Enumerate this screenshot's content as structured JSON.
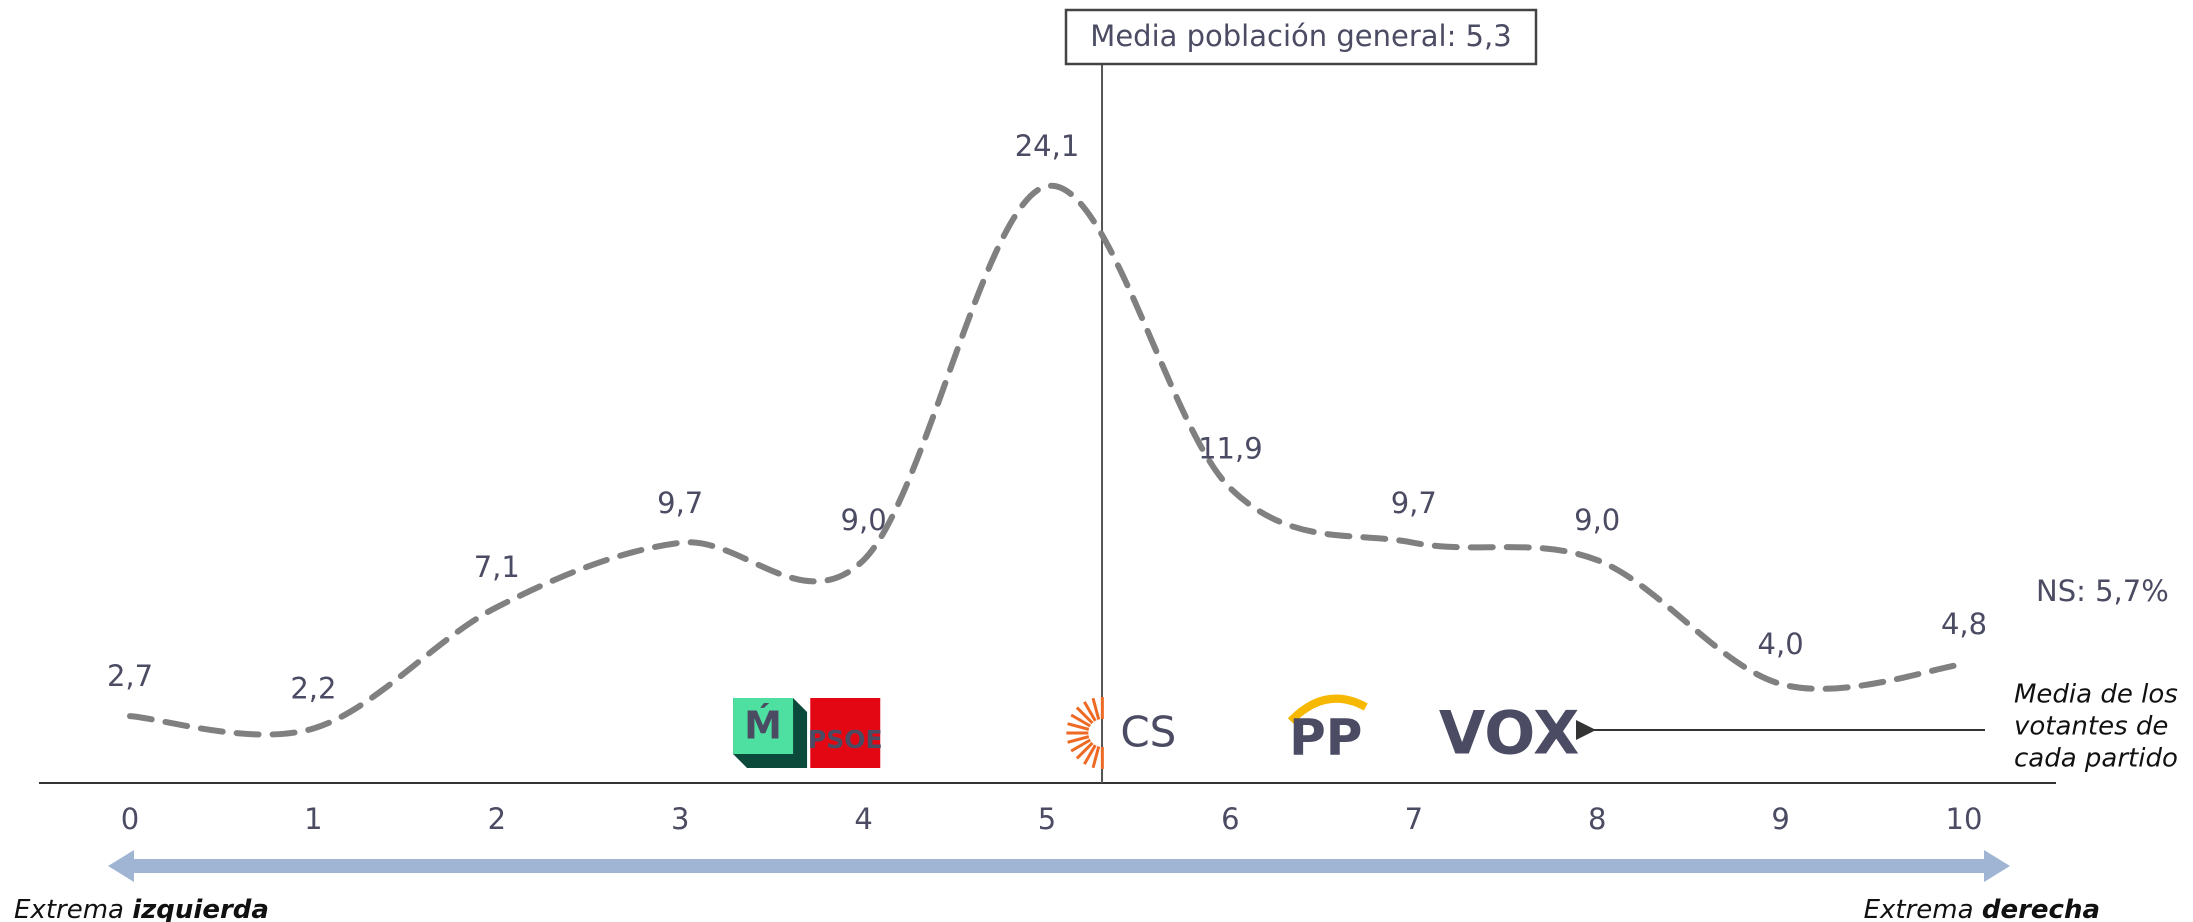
{
  "chart_data": {
    "type": "line",
    "x": [
      0,
      1,
      2,
      3,
      4,
      5,
      6,
      7,
      8,
      9,
      10
    ],
    "xlim": [
      0,
      10
    ],
    "xticks": [
      0,
      1,
      2,
      3,
      4,
      5,
      6,
      7,
      8,
      9,
      10
    ],
    "ylim": [
      0,
      30
    ],
    "series": [
      {
        "color": "#808080",
        "values": [
          2.7,
          2.2,
          7.1,
          9.7,
          9.0,
          24.1,
          11.9,
          9.7,
          9.0,
          4.0,
          4.8
        ],
        "value_labels": [
          "2,7",
          "2,2",
          "7,1",
          "9,7",
          "9,0",
          "24,1",
          "11,9",
          "9,7",
          "9,0",
          "4,0",
          "4,8"
        ]
      }
    ],
    "reference_line": {
      "value": 5.3,
      "label": "Media población general: 5,3"
    },
    "party_markers": [
      {
        "label": "Ḿ",
        "x": 3.49,
        "color": "#0b4a3a"
      },
      {
        "label": "PSOE",
        "x": 3.9,
        "color": "#e30613"
      },
      {
        "label": "CS",
        "x": 5.4,
        "color": "#ee6a24"
      },
      {
        "label": "PP",
        "x": 6.52,
        "color": "#1d5aa6"
      },
      {
        "label": "VOX",
        "x": 7.52,
        "color": "#63be21"
      }
    ],
    "annotations": {
      "ns": "NS: 5,7%",
      "party_mean": [
        "Media de los",
        "votantes de",
        "cada partido"
      ]
    },
    "axis_ends": {
      "left": {
        "prefix": "Extrema",
        "emphasis": "izquierda"
      },
      "right": {
        "prefix": "Extrema",
        "emphasis": "derecha"
      }
    }
  }
}
